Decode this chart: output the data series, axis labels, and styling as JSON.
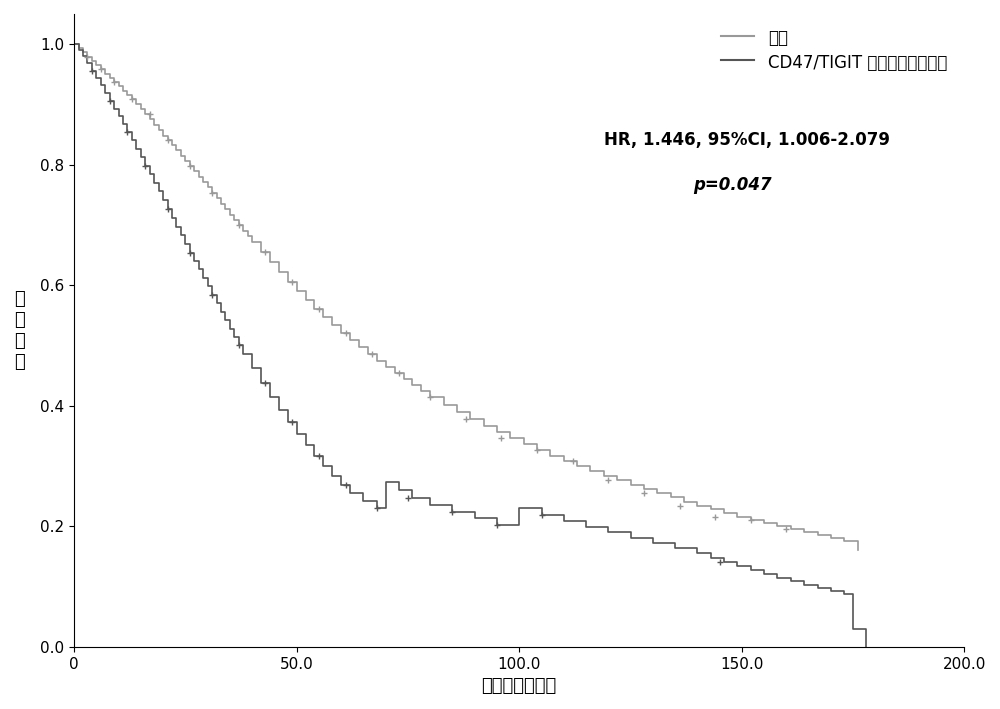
{
  "title": "",
  "xlabel": "生存时间（月）",
  "ylabel": "总\n生\n存\n率",
  "xlim": [
    0,
    200
  ],
  "ylim": [
    0.0,
    1.05
  ],
  "xticks": [
    0,
    50.0,
    100.0,
    150.0,
    200.0
  ],
  "xtick_labels": [
    "0",
    "50.0",
    "100.0",
    "150.0",
    "200.0"
  ],
  "yticks": [
    0.0,
    0.2,
    0.4,
    0.6,
    0.8,
    1.0
  ],
  "hr_text": "HR, 1.446, 95%CI, 1.006-2.079",
  "p_text": "p=0.047",
  "legend_label1": "其他",
  "legend_label2": "CD47/TIGIT 转录水平双高表达",
  "color1": "#999999",
  "color2": "#555555",
  "background": "#ffffff",
  "line_width": 1.2,
  "figsize": [
    10.0,
    7.09
  ],
  "dpi": 100,
  "group1_t": [
    0,
    1,
    2,
    3,
    4,
    5,
    6,
    7,
    8,
    9,
    10,
    11,
    12,
    13,
    14,
    15,
    16,
    17,
    18,
    19,
    20,
    21,
    22,
    23,
    24,
    25,
    26,
    27,
    28,
    29,
    30,
    31,
    32,
    33,
    34,
    35,
    36,
    37,
    38,
    39,
    40,
    42,
    44,
    46,
    48,
    50,
    52,
    54,
    56,
    58,
    60,
    62,
    64,
    66,
    68,
    70,
    72,
    74,
    76,
    78,
    80,
    83,
    86,
    89,
    92,
    95,
    98,
    101,
    104,
    107,
    110,
    113,
    116,
    119,
    122,
    125,
    128,
    131,
    134,
    137,
    140,
    143,
    146,
    149,
    152,
    155,
    158,
    161,
    164,
    167,
    170,
    173,
    176
  ],
  "group1_s": [
    1.0,
    0.993,
    0.986,
    0.979,
    0.972,
    0.965,
    0.958,
    0.951,
    0.944,
    0.937,
    0.93,
    0.922,
    0.915,
    0.908,
    0.9,
    0.892,
    0.884,
    0.875,
    0.866,
    0.857,
    0.848,
    0.84,
    0.832,
    0.824,
    0.815,
    0.806,
    0.797,
    0.789,
    0.78,
    0.771,
    0.762,
    0.753,
    0.744,
    0.735,
    0.726,
    0.717,
    0.708,
    0.699,
    0.69,
    0.681,
    0.672,
    0.655,
    0.638,
    0.622,
    0.606,
    0.59,
    0.575,
    0.561,
    0.547,
    0.534,
    0.521,
    0.509,
    0.497,
    0.486,
    0.475,
    0.464,
    0.454,
    0.444,
    0.434,
    0.424,
    0.415,
    0.402,
    0.39,
    0.378,
    0.367,
    0.356,
    0.346,
    0.336,
    0.326,
    0.317,
    0.308,
    0.3,
    0.292,
    0.284,
    0.276,
    0.269,
    0.262,
    0.255,
    0.248,
    0.241,
    0.234,
    0.228,
    0.222,
    0.216,
    0.21,
    0.205,
    0.2,
    0.195,
    0.19,
    0.185,
    0.18,
    0.175,
    0.16
  ],
  "group1_censors_t": [
    3,
    6,
    9,
    13,
    17,
    21,
    26,
    31,
    37,
    43,
    49,
    55,
    61,
    67,
    73,
    80,
    88,
    96,
    104,
    112,
    120,
    128,
    136,
    144,
    152,
    160
  ],
  "group1_censors_s": [
    0.979,
    0.958,
    0.937,
    0.908,
    0.884,
    0.84,
    0.797,
    0.753,
    0.699,
    0.655,
    0.606,
    0.56,
    0.521,
    0.486,
    0.454,
    0.415,
    0.378,
    0.346,
    0.326,
    0.308,
    0.276,
    0.255,
    0.234,
    0.216,
    0.21,
    0.195
  ],
  "group2_t": [
    0,
    1,
    2,
    3,
    4,
    5,
    6,
    7,
    8,
    9,
    10,
    11,
    12,
    13,
    14,
    15,
    16,
    17,
    18,
    19,
    20,
    21,
    22,
    23,
    24,
    25,
    26,
    27,
    28,
    29,
    30,
    31,
    32,
    33,
    34,
    35,
    36,
    37,
    38,
    40,
    42,
    44,
    46,
    48,
    50,
    52,
    54,
    56,
    58,
    60,
    62,
    65,
    68,
    70,
    73,
    76,
    80,
    85,
    90,
    95,
    100,
    105,
    110,
    115,
    120,
    125,
    130,
    135,
    140,
    143,
    146,
    149,
    152,
    155,
    158,
    161,
    164,
    167,
    170,
    173,
    175,
    178
  ],
  "group2_s": [
    1.0,
    0.99,
    0.98,
    0.968,
    0.956,
    0.944,
    0.932,
    0.919,
    0.906,
    0.893,
    0.88,
    0.867,
    0.854,
    0.84,
    0.826,
    0.812,
    0.798,
    0.784,
    0.77,
    0.756,
    0.741,
    0.726,
    0.711,
    0.697,
    0.683,
    0.668,
    0.654,
    0.64,
    0.626,
    0.612,
    0.598,
    0.584,
    0.57,
    0.556,
    0.542,
    0.528,
    0.514,
    0.5,
    0.486,
    0.462,
    0.438,
    0.415,
    0.393,
    0.373,
    0.353,
    0.334,
    0.316,
    0.3,
    0.284,
    0.269,
    0.255,
    0.242,
    0.23,
    0.273,
    0.26,
    0.247,
    0.235,
    0.224,
    0.213,
    0.202,
    0.23,
    0.219,
    0.209,
    0.199,
    0.19,
    0.181,
    0.172,
    0.164,
    0.156,
    0.148,
    0.141,
    0.134,
    0.127,
    0.121,
    0.115,
    0.109,
    0.103,
    0.098,
    0.093,
    0.088,
    0.03,
    0.0
  ],
  "group2_censors_t": [
    4,
    8,
    12,
    16,
    21,
    26,
    31,
    37,
    43,
    49,
    55,
    61,
    68,
    75,
    85,
    95,
    105,
    145
  ],
  "group2_censors_s": [
    0.956,
    0.906,
    0.854,
    0.798,
    0.726,
    0.654,
    0.584,
    0.5,
    0.438,
    0.373,
    0.316,
    0.269,
    0.23,
    0.247,
    0.224,
    0.202,
    0.219,
    0.141
  ]
}
